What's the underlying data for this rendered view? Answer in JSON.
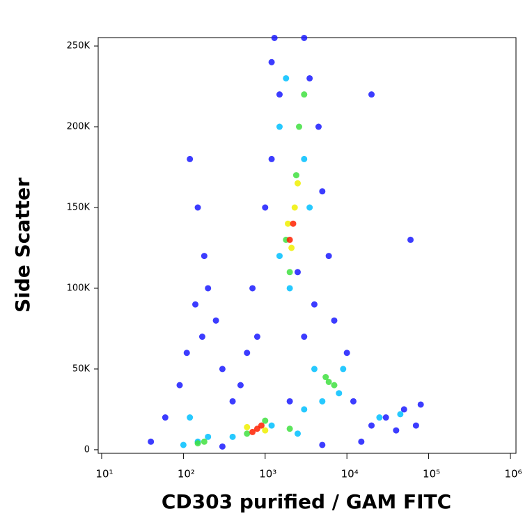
{
  "chart_data": {
    "type": "scatter",
    "x_label": "CD303 purified / GAM FITC",
    "y_label": "Side Scatter",
    "xscale": "log",
    "xlim": [
      9.07,
      1170000
    ],
    "ylim": [
      -2200,
      255200
    ],
    "xticks": [
      {
        "value": 10,
        "label": "10¹"
      },
      {
        "value": 100,
        "label": "10²"
      },
      {
        "value": 1000,
        "label": "10³"
      },
      {
        "value": 10000,
        "label": "10⁴"
      },
      {
        "value": 100000,
        "label": "10⁵"
      },
      {
        "value": 1000000,
        "label": "10⁶"
      }
    ],
    "yticks": [
      0,
      {
        "value": 50000,
        "label": "50K"
      },
      {
        "value": 100000,
        "label": "100K"
      },
      {
        "value": 150000,
        "label": "150K"
      },
      {
        "value": 200000,
        "label": "200K"
      },
      {
        "value": 250000,
        "label": "250K"
      }
    ],
    "series": [
      {
        "color": "#1a1aff",
        "x": [
          120,
          150,
          180,
          200,
          140,
          170,
          110,
          250,
          90,
          300,
          60,
          40,
          1200,
          1500,
          3500,
          4500,
          5000,
          1200,
          6000,
          4000,
          1000,
          800,
          600,
          3000,
          10000,
          12000,
          2000,
          400,
          20000,
          30000,
          50000,
          70000,
          80000,
          40000,
          15000,
          5000,
          300,
          500,
          1300,
          3000,
          700,
          2500,
          7000,
          20000,
          60000
        ],
        "y": [
          180000,
          150000,
          120000,
          100000,
          90000,
          70000,
          60000,
          80000,
          40000,
          50000,
          20000,
          5000,
          240000,
          220000,
          230000,
          200000,
          160000,
          180000,
          120000,
          90000,
          150000,
          70000,
          60000,
          70000,
          60000,
          30000,
          30000,
          30000,
          15000,
          20000,
          25000,
          15000,
          28000,
          12000,
          5000,
          3000,
          2000,
          40000,
          255000,
          255000,
          100000,
          110000,
          80000,
          220000,
          130000
        ]
      },
      {
        "color": "#00bfff",
        "x": [
          150,
          200,
          100,
          120,
          1500,
          1800,
          3000,
          1500,
          3500,
          2000,
          4000,
          8000,
          9000,
          5000,
          1200,
          2500,
          400,
          3000,
          25000,
          45000
        ],
        "y": [
          5000,
          8000,
          3000,
          20000,
          200000,
          230000,
          180000,
          120000,
          150000,
          100000,
          50000,
          35000,
          50000,
          30000,
          15000,
          10000,
          8000,
          25000,
          20000,
          22000
        ]
      },
      {
        "color": "#40e040",
        "x": [
          2000,
          2600,
          2400,
          3000,
          1800,
          6000,
          5500,
          7000,
          150,
          180,
          600,
          1000,
          2000
        ],
        "y": [
          110000,
          200000,
          170000,
          220000,
          130000,
          42000,
          45000,
          40000,
          4000,
          5000,
          10000,
          18000,
          13000
        ]
      },
      {
        "color": "#f0f000",
        "x": [
          2100,
          2500,
          2300,
          1900,
          600,
          1000
        ],
        "y": [
          125000,
          165000,
          150000,
          140000,
          14000,
          12000
        ]
      },
      {
        "color": "#ff2000",
        "x": [
          2200,
          2000,
          800,
          700,
          900
        ],
        "y": [
          140000,
          130000,
          13000,
          11000,
          15000
        ]
      }
    ]
  }
}
